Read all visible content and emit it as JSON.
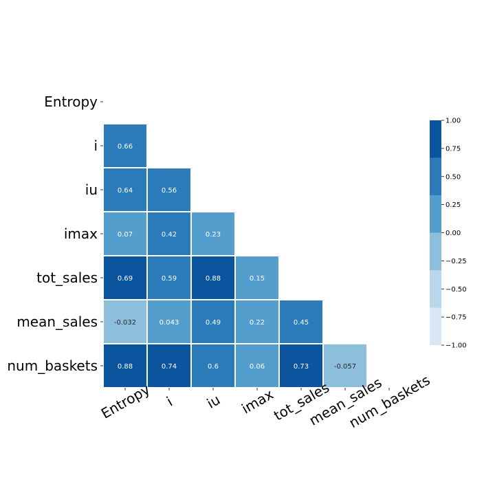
{
  "chart_data": {
    "type": "heatmap",
    "variables": [
      "Entropy",
      "i",
      "iu",
      "imax",
      "tot_sales",
      "mean_sales",
      "num_baskets"
    ],
    "mask": "lower-triangle",
    "cells": [
      {
        "row": "i",
        "col": "Entropy",
        "value": 0.66,
        "label": "0.66"
      },
      {
        "row": "iu",
        "col": "Entropy",
        "value": 0.64,
        "label": "0.64"
      },
      {
        "row": "iu",
        "col": "i",
        "value": 0.56,
        "label": "0.56"
      },
      {
        "row": "imax",
        "col": "Entropy",
        "value": 0.07,
        "label": "0.07"
      },
      {
        "row": "imax",
        "col": "i",
        "value": 0.42,
        "label": "0.42"
      },
      {
        "row": "imax",
        "col": "iu",
        "value": 0.23,
        "label": "0.23"
      },
      {
        "row": "tot_sales",
        "col": "Entropy",
        "value": 0.69,
        "label": "0.69"
      },
      {
        "row": "tot_sales",
        "col": "i",
        "value": 0.59,
        "label": "0.59"
      },
      {
        "row": "tot_sales",
        "col": "iu",
        "value": 0.88,
        "label": "0.88"
      },
      {
        "row": "tot_sales",
        "col": "imax",
        "value": 0.15,
        "label": "0.15"
      },
      {
        "row": "mean_sales",
        "col": "Entropy",
        "value": -0.032,
        "label": "-0.032"
      },
      {
        "row": "mean_sales",
        "col": "i",
        "value": 0.043,
        "label": "0.043"
      },
      {
        "row": "mean_sales",
        "col": "iu",
        "value": 0.49,
        "label": "0.49"
      },
      {
        "row": "mean_sales",
        "col": "imax",
        "value": 0.22,
        "label": "0.22"
      },
      {
        "row": "mean_sales",
        "col": "tot_sales",
        "value": 0.45,
        "label": "0.45"
      },
      {
        "row": "num_baskets",
        "col": "Entropy",
        "value": 0.88,
        "label": "0.88"
      },
      {
        "row": "num_baskets",
        "col": "i",
        "value": 0.74,
        "label": "0.74"
      },
      {
        "row": "num_baskets",
        "col": "iu",
        "value": 0.6,
        "label": "0.6"
      },
      {
        "row": "num_baskets",
        "col": "imax",
        "value": 0.06,
        "label": "0.06"
      },
      {
        "row": "num_baskets",
        "col": "tot_sales",
        "value": 0.73,
        "label": "0.73"
      },
      {
        "row": "num_baskets",
        "col": "mean_sales",
        "value": -0.057,
        "label": "-0.057"
      }
    ],
    "colorbar": {
      "range": [
        -1.0,
        1.0
      ],
      "ticks": [
        "1.00",
        "0.75",
        "0.50",
        "0.25",
        "0.00",
        "−0.25",
        "−0.50",
        "−0.75",
        "−1.00"
      ],
      "levels": [
        {
          "from": -1.0,
          "to": -0.6667,
          "color": "#d8e7f5"
        },
        {
          "from": -0.6667,
          "to": -0.3333,
          "color": "#b9d6ea"
        },
        {
          "from": -0.3333,
          "to": 0.0,
          "color": "#8dbfdd"
        },
        {
          "from": 0.0,
          "to": 0.3333,
          "color": "#539ecd"
        },
        {
          "from": 0.3333,
          "to": 0.6667,
          "color": "#2b7bba"
        },
        {
          "from": 0.6667,
          "to": 1.0,
          "color": "#0b559f"
        }
      ]
    },
    "cell_text_colors": {
      "light_bg": "#262626",
      "dark_bg": "#ffffff"
    }
  }
}
